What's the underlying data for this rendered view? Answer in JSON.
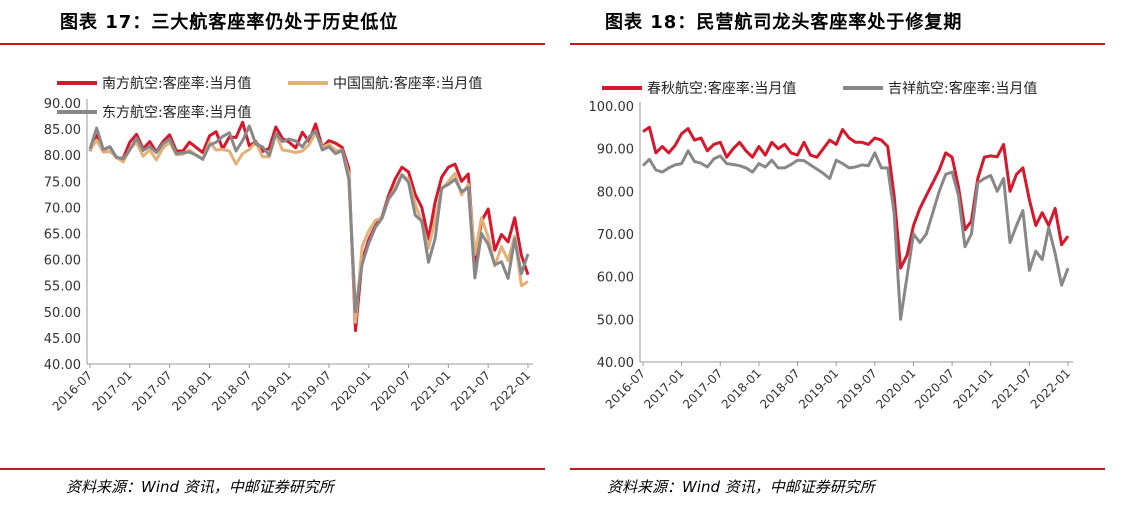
{
  "charts": [
    {
      "figure_title": "图表 17：三大航客座率仍处于历史低位",
      "source": "资料来源：Wind 资讯，中邮证券研究所"
    },
    {
      "figure_title": "图表 18：民营航司龙头客座率处于修复期",
      "source": "资料来源：Wind 资讯，中邮证券研究所"
    }
  ],
  "chart_data": [
    {
      "type": "line",
      "title": "图表 17：三大航客座率仍处于历史低位",
      "ylim": [
        40,
        90
      ],
      "yticks": [
        "40.00",
        "45.00",
        "50.00",
        "55.00",
        "60.00",
        "65.00",
        "70.00",
        "75.00",
        "80.00",
        "85.00",
        "90.00"
      ],
      "xticks": [
        "2016-07",
        "2017-01",
        "2017-07",
        "2018-01",
        "2018-07",
        "2019-01",
        "2019-07",
        "2020-01",
        "2020-07",
        "2021-01",
        "2021-07",
        "2022-01"
      ],
      "x_start": "2016-07",
      "frequency": "monthly",
      "grid": false,
      "legend_position": "top-left",
      "series": [
        {
          "name": "南方航空:客座率:当月值",
          "color": "#d7172b",
          "values": [
            80.8,
            83.8,
            81,
            81.6,
            79.5,
            79.4,
            82.5,
            84,
            81.2,
            82.6,
            80.6,
            82.6,
            83.9,
            80.8,
            80.8,
            82.5,
            81.5,
            80.5,
            83.7,
            84.5,
            81.2,
            83.5,
            83.4,
            86.3,
            81.8,
            82.6,
            80.7,
            81.3,
            85.4,
            83.2,
            82.5,
            81.4,
            84.4,
            82.6,
            86,
            81.5,
            82.8,
            82.3,
            81.5,
            77.5,
            46.4,
            59.8,
            63.8,
            66.5,
            68.2,
            72.3,
            75.5,
            77.7,
            76.8,
            72.5,
            70,
            63.9,
            71,
            75.8,
            77.7,
            78.3,
            75,
            76.4,
            59.5,
            67.4,
            69.7,
            61.8,
            64.8,
            63.4,
            68,
            60.8,
            57.1
          ]
        },
        {
          "name": "中国国航:客座率:当月值",
          "color": "#e2b178",
          "values": [
            80.9,
            82.9,
            80.6,
            80.7,
            79.6,
            78.7,
            81.2,
            82.5,
            79.8,
            81,
            79.1,
            81.4,
            82.5,
            80.1,
            80.2,
            81,
            80,
            79.3,
            82.5,
            81,
            81.1,
            80.8,
            78.3,
            80.3,
            81.1,
            82.5,
            79.7,
            79.7,
            84,
            81,
            80.8,
            80.5,
            80.8,
            82,
            84.3,
            81.5,
            82.1,
            80.9,
            81,
            76.4,
            48,
            62.5,
            65.5,
            67.5,
            68,
            71.6,
            73.8,
            76.3,
            75.3,
            70.7,
            67.1,
            62.2,
            67.6,
            73.5,
            75,
            76.5,
            72.4,
            74.4,
            61,
            68,
            64.3,
            58.8,
            62.5,
            59.8,
            64.5,
            55,
            55.8
          ]
        },
        {
          "name": "东方航空:客座率:当月值",
          "color": "#888888",
          "values": [
            81.2,
            85.2,
            81.1,
            81.6,
            79.6,
            79.3,
            81,
            83.3,
            80.9,
            81.7,
            80.5,
            82.2,
            83.1,
            80.3,
            80.5,
            80.6,
            80,
            79.2,
            81.9,
            82.5,
            83.6,
            84.3,
            80.8,
            82.8,
            85.6,
            82.1,
            81.6,
            80,
            84.2,
            82.6,
            83.1,
            82.7,
            81.6,
            83.5,
            84.7,
            81,
            81.6,
            80.3,
            80.9,
            75.4,
            50,
            59.1,
            63.1,
            66.2,
            67.9,
            71.6,
            73.4,
            76.2,
            74.8,
            68.5,
            67.4,
            59.5,
            64,
            73.7,
            74.4,
            75.4,
            73,
            73.8,
            56.5,
            65,
            62.9,
            59,
            59.6,
            56.4,
            64,
            57.3,
            61.1
          ]
        }
      ]
    },
    {
      "type": "line",
      "title": "图表 18：民营航司龙头客座率处于修复期",
      "ylim": [
        40,
        100
      ],
      "yticks": [
        "40.00",
        "50.00",
        "60.00",
        "70.00",
        "80.00",
        "90.00",
        "100.00"
      ],
      "xticks": [
        "2016-07",
        "2017-01",
        "2017-07",
        "2018-01",
        "2018-07",
        "2019-01",
        "2019-07",
        "2020-01",
        "2020-07",
        "2021-01",
        "2021-07",
        "2022-01"
      ],
      "x_start": "2016-07",
      "frequency": "monthly",
      "grid": false,
      "legend_position": "top-left",
      "series": [
        {
          "name": "春秋航空:客座率:当月值",
          "color": "#d7172b",
          "values": [
            94,
            95,
            89,
            90.5,
            89,
            90.8,
            93.5,
            94.7,
            92,
            92.5,
            89.5,
            91,
            91.5,
            88,
            90,
            91.5,
            89.5,
            88,
            90.5,
            88.5,
            91.5,
            90,
            91,
            89,
            88.5,
            91.5,
            88.5,
            88,
            90,
            92,
            91,
            94.5,
            92.5,
            91.5,
            91.5,
            91,
            92.5,
            92,
            90.5,
            79,
            62,
            65,
            72,
            76,
            79,
            82,
            85,
            89,
            88,
            81,
            71,
            73,
            83,
            88,
            88.3,
            88.1,
            91,
            80,
            84,
            85.5,
            78,
            72,
            75,
            72,
            76,
            67.5,
            69.5
          ]
        },
        {
          "name": "吉祥航空:客座率:当月值",
          "color": "#888888",
          "values": [
            86,
            87.5,
            85,
            84.5,
            85.5,
            86.2,
            86.5,
            89.5,
            87,
            86.6,
            85.7,
            87.6,
            88.3,
            86.5,
            86.3,
            86,
            85.5,
            84.5,
            86.5,
            85.7,
            87.3,
            85.5,
            85.5,
            86.3,
            87.3,
            87.2,
            86.2,
            85.2,
            84.2,
            83,
            87.3,
            86.5,
            85.5,
            85.7,
            86.2,
            86,
            89,
            85.5,
            85.5,
            75,
            50,
            60,
            70,
            68,
            70,
            75,
            80,
            84,
            84.5,
            79,
            67,
            70,
            82,
            83,
            83.7,
            80,
            83,
            68,
            72,
            75.5,
            61.5,
            66,
            64,
            71.5,
            65.5,
            58,
            62
          ]
        }
      ]
    }
  ]
}
